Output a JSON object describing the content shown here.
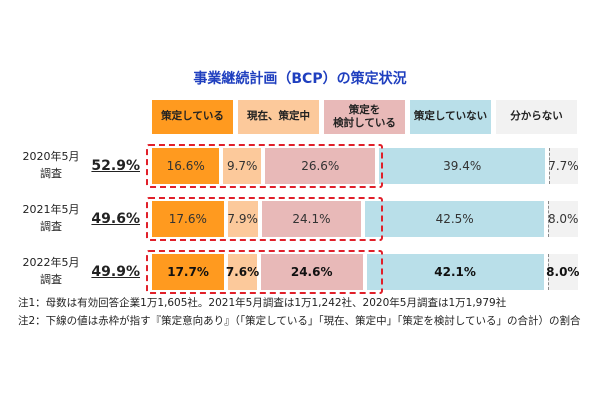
{
  "chart_data": {
    "type": "stacked-bar-horizontal",
    "title": "事業継続計画（BCP）の策定状況",
    "categories": [
      "2020年5月\n調査",
      "2021年5月\n調査",
      "2022年5月\n調査"
    ],
    "xlim": [
      0,
      100
    ],
    "series": [
      {
        "name": "策定している",
        "color": "#ff9a1f",
        "values": [
          16.6,
          17.6,
          17.7
        ],
        "value_labels": [
          "16.6%",
          "17.6%",
          "17.7%"
        ]
      },
      {
        "name": "現在、策定中",
        "color": "#fcc99b",
        "values": [
          9.7,
          7.9,
          7.6
        ],
        "value_labels": [
          "9.7%",
          "7.9%",
          "7.6%"
        ]
      },
      {
        "name": "策定を\n検討している",
        "color": "#e8b9b8",
        "values": [
          26.6,
          24.1,
          24.6
        ],
        "value_labels": [
          "26.6%",
          "24.1%",
          "24.6%"
        ]
      },
      {
        "name": "策定していない",
        "color": "#b9dfe9",
        "values": [
          39.4,
          42.5,
          42.1
        ],
        "value_labels": [
          "39.4%",
          "42.5%",
          "42.1%"
        ]
      },
      {
        "name": "分からない",
        "color": "#f2f2f2",
        "values": [
          7.7,
          8.0,
          8.0
        ],
        "value_labels": [
          "7.7%",
          "8.0%",
          "8.0%"
        ]
      }
    ],
    "totals": {
      "values": [
        52.9,
        49.6,
        49.9
      ],
      "value_labels": [
        "52.9%",
        "49.6%",
        "49.9%"
      ]
    },
    "notes": [
      "注1：母数は有効回答企業1万1,605社。2021年5月調査は1万1,242社、2020年5月調査は1万1,979社",
      "注2：下線の値は赤枠が指す『策定意向あり』（「策定している」「現在、策定中」「策定を検討している」の合計）の割合"
    ]
  }
}
